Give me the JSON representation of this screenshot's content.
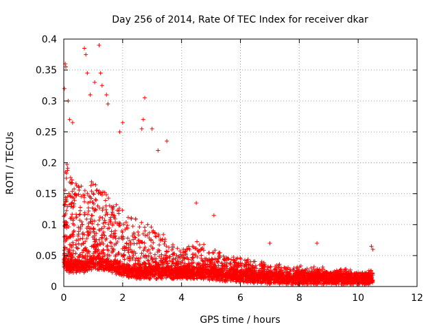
{
  "chart_data": {
    "type": "scatter",
    "title": "Day 256 of 2014, Rate Of TEC Index for receiver dkar",
    "xlabel": "GPS time / hours",
    "ylabel": "ROTI / TECUs",
    "xlim": [
      0,
      12
    ],
    "ylim": [
      0,
      0.4
    ],
    "xticks": [
      0,
      2,
      4,
      6,
      8,
      10,
      12
    ],
    "yticks": [
      0,
      0.05,
      0.1,
      0.15,
      0.2,
      0.25,
      0.3,
      0.35,
      0.4
    ],
    "xtick_labels": [
      "0",
      "2",
      "4",
      "6",
      "8",
      "10",
      "12"
    ],
    "ytick_labels": [
      "0",
      "0.05",
      "0.1",
      "0.15",
      "0.2",
      "0.25",
      "0.3",
      "0.35",
      "0.4"
    ],
    "grid": true,
    "marker": "+",
    "color": "#ff0000",
    "series": [
      {
        "name": "ROTI",
        "description": "dense scatter of ROTI samples; values estimated as an envelope over time",
        "envelope": {
          "hours": [
            0.0,
            0.1,
            0.3,
            0.5,
            0.7,
            1.0,
            1.3,
            1.6,
            2.0,
            2.4,
            2.8,
            3.2,
            3.6,
            4.0,
            4.5,
            5.0,
            5.5,
            6.0,
            6.5,
            7.0,
            7.5,
            8.0,
            8.5,
            9.0,
            9.5,
            10.0,
            10.5
          ],
          "base": [
            0.04,
            0.03,
            0.03,
            0.03,
            0.03,
            0.035,
            0.035,
            0.03,
            0.025,
            0.02,
            0.02,
            0.02,
            0.02,
            0.02,
            0.02,
            0.018,
            0.016,
            0.015,
            0.013,
            0.012,
            0.01,
            0.01,
            0.01,
            0.01,
            0.01,
            0.01,
            0.01
          ],
          "upper": [
            0.16,
            0.2,
            0.18,
            0.17,
            0.16,
            0.17,
            0.16,
            0.14,
            0.12,
            0.11,
            0.1,
            0.09,
            0.07,
            0.06,
            0.07,
            0.06,
            0.05,
            0.045,
            0.04,
            0.035,
            0.03,
            0.03,
            0.03,
            0.025,
            0.025,
            0.025,
            0.025
          ]
        },
        "notable_points": [
          [
            0.05,
            0.36
          ],
          [
            0.07,
            0.355
          ],
          [
            0.02,
            0.32
          ],
          [
            0.15,
            0.3
          ],
          [
            0.7,
            0.385
          ],
          [
            0.75,
            0.375
          ],
          [
            0.8,
            0.345
          ],
          [
            1.2,
            0.39
          ],
          [
            1.25,
            0.345
          ],
          [
            1.05,
            0.33
          ],
          [
            1.3,
            0.325
          ],
          [
            1.45,
            0.31
          ],
          [
            0.9,
            0.31
          ],
          [
            1.5,
            0.295
          ],
          [
            2.75,
            0.305
          ],
          [
            2.7,
            0.27
          ],
          [
            2.65,
            0.255
          ],
          [
            2.0,
            0.265
          ],
          [
            1.9,
            0.25
          ],
          [
            0.2,
            0.27
          ],
          [
            0.3,
            0.265
          ],
          [
            3.0,
            0.255
          ],
          [
            3.5,
            0.235
          ],
          [
            3.2,
            0.22
          ],
          [
            4.5,
            0.135
          ],
          [
            5.1,
            0.115
          ],
          [
            7.0,
            0.07
          ],
          [
            8.6,
            0.07
          ],
          [
            10.5,
            0.06
          ],
          [
            10.45,
            0.065
          ]
        ]
      }
    ]
  }
}
